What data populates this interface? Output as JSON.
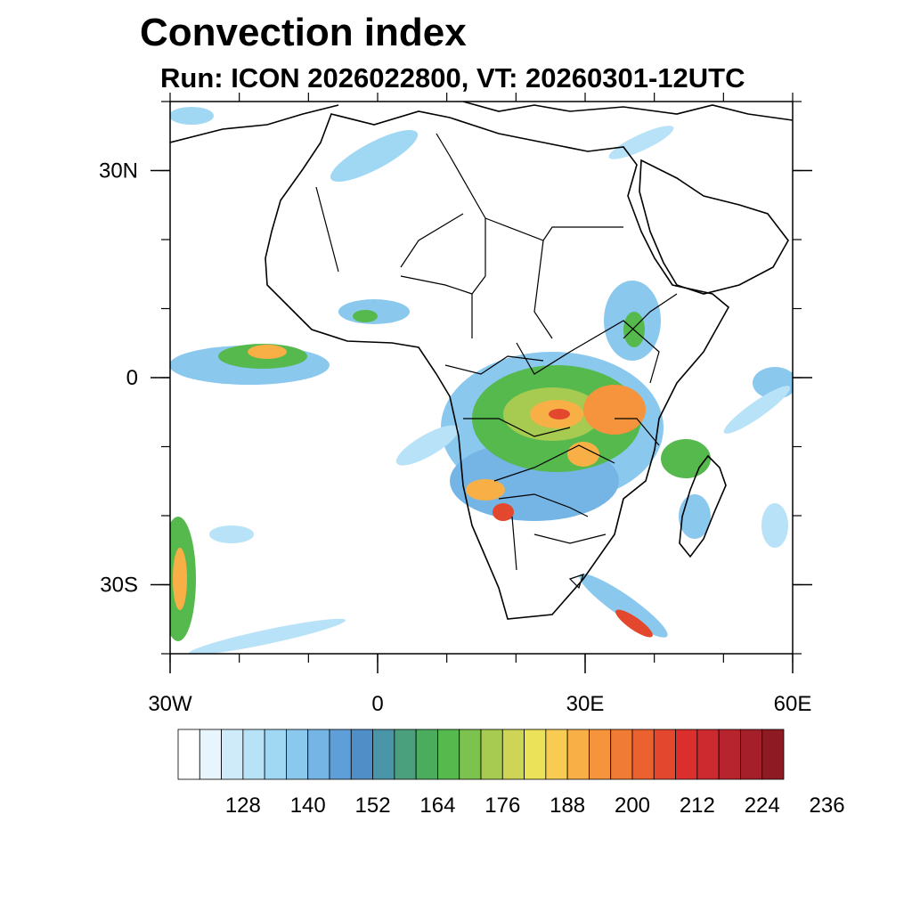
{
  "title": "Convection index",
  "subtitle": "Run: ICON 2026022800,  VT: 20260301-12UTC",
  "map": {
    "lon_range": [
      -30,
      60
    ],
    "lat_range": [
      -40,
      40
    ],
    "x_ticks": [
      {
        "lon": -30,
        "label": "30W"
      },
      {
        "lon": 0,
        "label": "0"
      },
      {
        "lon": 30,
        "label": "30E"
      },
      {
        "lon": 60,
        "label": "60E"
      }
    ],
    "y_ticks": [
      {
        "lat": 30,
        "label": "30N"
      },
      {
        "lat": 0,
        "label": "0"
      },
      {
        "lat": -30,
        "label": "30S"
      }
    ],
    "minor_step_deg": 10
  },
  "colorbar": {
    "colors": [
      "#ffffff",
      "#e8f5fc",
      "#cfebf9",
      "#b8e2f7",
      "#a0d8f3",
      "#8ac8ee",
      "#74b5e6",
      "#5f9fd9",
      "#4f8ec7",
      "#4a96a8",
      "#4aa07c",
      "#4cac5e",
      "#56b94d",
      "#7bc24e",
      "#a6cb50",
      "#cdd456",
      "#ece25a",
      "#f8cc52",
      "#f8b046",
      "#f5943c",
      "#f07b35",
      "#eb6230",
      "#e3472e",
      "#db2f2d",
      "#cc2a2e",
      "#b8242d",
      "#a41f29",
      "#8e1a24"
    ],
    "tick_labels": [
      "128",
      "140",
      "152",
      "164",
      "176",
      "188",
      "200",
      "212",
      "224",
      "236"
    ]
  }
}
